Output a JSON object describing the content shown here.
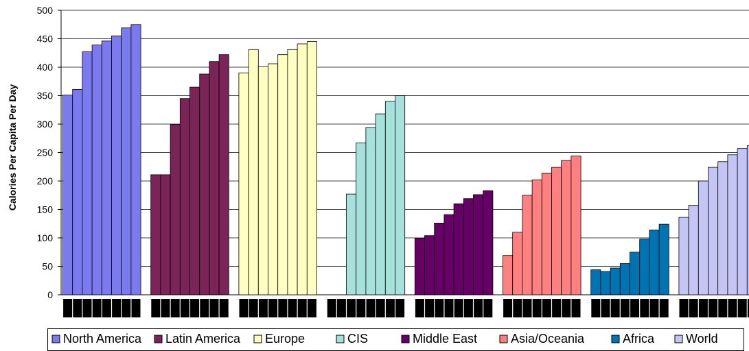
{
  "chart_data": {
    "type": "bar",
    "title": "",
    "xlabel": "",
    "ylabel": "Calories Per Capita Per Day",
    "ylim": [
      0,
      500
    ],
    "yticks": [
      0,
      50,
      100,
      150,
      200,
      250,
      300,
      350,
      400,
      450,
      500
    ],
    "grid": true,
    "legend_position": "bottom",
    "series": [
      {
        "name": "North America",
        "color": "#7b7bef",
        "values": [
          351,
          361,
          427,
          439,
          446,
          455,
          469,
          475
        ]
      },
      {
        "name": "Latin America",
        "color": "#7b2457",
        "values": [
          211,
          211,
          299,
          345,
          365,
          388,
          410,
          422
        ]
      },
      {
        "name": "Europe",
        "color": "#ffffc2",
        "values": [
          390,
          431,
          401,
          406,
          422,
          431,
          441,
          445
        ]
      },
      {
        "name": "CIS",
        "color": "#a6e1db",
        "values": [
          null,
          null,
          177,
          267,
          294,
          318,
          340,
          350
        ]
      },
      {
        "name": "Middle East",
        "color": "#660066",
        "values": [
          99,
          104,
          126,
          141,
          160,
          169,
          176,
          183
        ]
      },
      {
        "name": "Asia/Oceania",
        "color": "#ff8080",
        "values": [
          69,
          110,
          175,
          202,
          214,
          224,
          236,
          244
        ]
      },
      {
        "name": "Africa",
        "color": "#0073b3",
        "values": [
          44,
          41,
          47,
          55,
          75,
          98,
          114,
          124
        ]
      },
      {
        "name": "World",
        "color": "#c4c4f5",
        "values": [
          136,
          157,
          200,
          224,
          234,
          246,
          257,
          262
        ]
      }
    ]
  }
}
